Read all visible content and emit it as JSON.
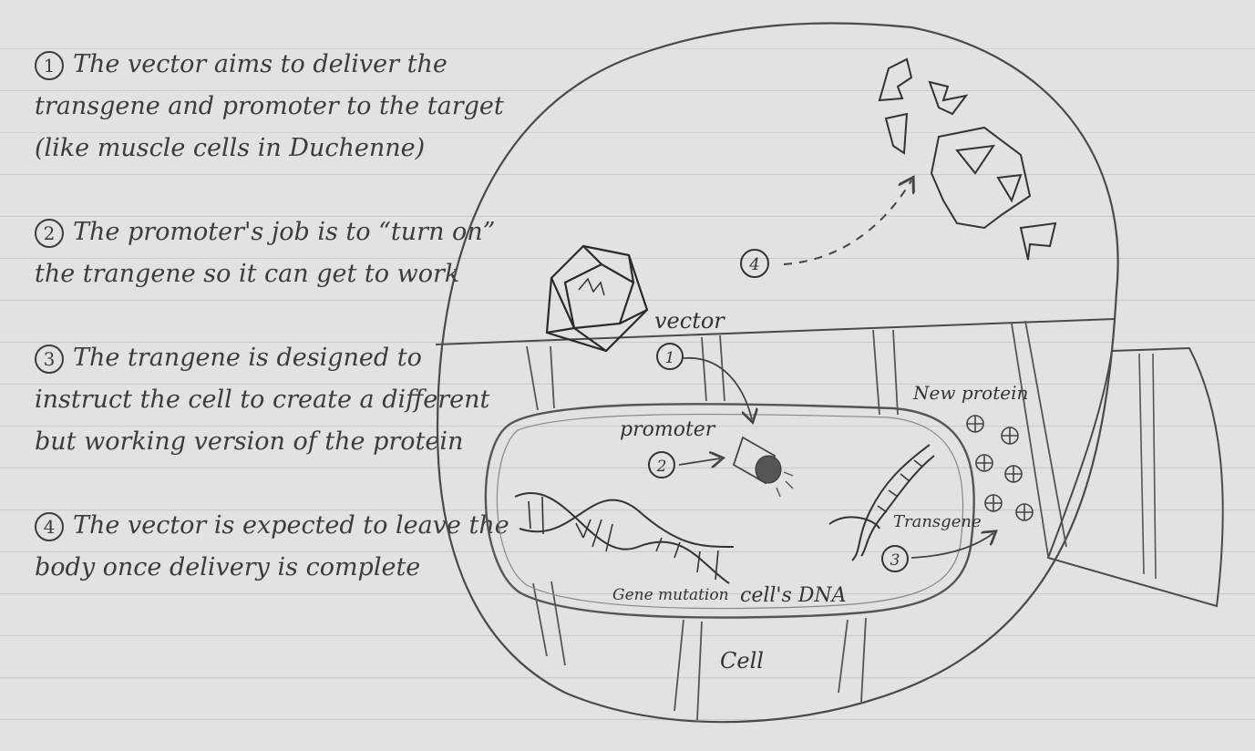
{
  "notes": [
    {
      "num": "1",
      "text": "The vector aims to deliver the transgene and promoter to the target (like muscle cells in Duchenne)"
    },
    {
      "num": "2",
      "text": "The promoter's job is to “turn on” the trangene so it can get to work"
    },
    {
      "num": "3",
      "text": "The trangene is designed to instruct the cell to create a different but working version of the protein"
    },
    {
      "num": "4",
      "text": "The vector is expected to leave the body once delivery is complete"
    }
  ],
  "labels": {
    "vector": "vector",
    "promoter": "promoter",
    "new_protein": "New protein",
    "transgene": "Transgene",
    "gene_mutation": "Gene mutation",
    "cells_dna": "cell's DNA",
    "cell": "Cell"
  },
  "markers": {
    "m1": "1",
    "m2": "2",
    "m3": "3",
    "m4": "4"
  }
}
